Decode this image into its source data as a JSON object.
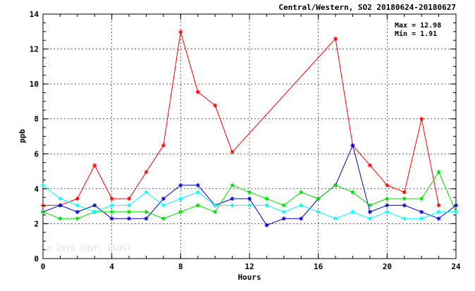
{
  "chart_data": {
    "type": "line",
    "title": "Central/Western, SO2 20180624-20180627",
    "xlabel": "Hours",
    "ylabel": "ppb",
    "xlim": [
      0,
      24
    ],
    "ylim": [
      0,
      14
    ],
    "xticks": [
      0,
      4,
      8,
      12,
      16,
      20,
      24
    ],
    "yticks": [
      0,
      2,
      4,
      6,
      8,
      10,
      12,
      14
    ],
    "grid": "dashed",
    "stats": {
      "max_label": "Max = 12.98",
      "min_label": "Min =  1.91"
    },
    "watermark": "© 2026  ENVF, HKUST",
    "series": [
      {
        "color": "#ff0000",
        "x": [
          0,
          1,
          2,
          3,
          4,
          5,
          6,
          7,
          8,
          9,
          10,
          11,
          17,
          18,
          19,
          20,
          21,
          22,
          23
        ],
        "y": [
          3.05,
          3.05,
          3.43,
          5.34,
          3.43,
          3.43,
          4.96,
          6.48,
          12.98,
          9.54,
          8.77,
          6.1,
          12.59,
          6.48,
          5.34,
          4.2,
          3.8,
          8.0,
          3.05
        ]
      },
      {
        "color": "#0000cc",
        "x": [
          0,
          1,
          2,
          3,
          4,
          5,
          6,
          7,
          8,
          9,
          10,
          11,
          12,
          13,
          14,
          15,
          16,
          17,
          18,
          19,
          20,
          21,
          22,
          23,
          24
        ],
        "y": [
          2.67,
          3.05,
          2.67,
          3.05,
          2.29,
          2.29,
          2.29,
          3.43,
          4.2,
          4.2,
          3.05,
          3.43,
          3.43,
          1.91,
          2.29,
          2.29,
          3.43,
          4.2,
          6.48,
          2.67,
          3.05,
          3.05,
          2.67,
          2.29,
          3.05
        ]
      },
      {
        "color": "#00dd00",
        "x": [
          0,
          1,
          2,
          3,
          4,
          5,
          6,
          7,
          8,
          9,
          10,
          11,
          12,
          13,
          14,
          15,
          16,
          17,
          18,
          19,
          20,
          21,
          22,
          23,
          24
        ],
        "y": [
          2.67,
          2.29,
          2.29,
          2.67,
          2.67,
          2.67,
          2.67,
          2.29,
          2.67,
          3.05,
          2.67,
          4.2,
          3.8,
          3.43,
          3.05,
          3.8,
          3.43,
          4.2,
          3.8,
          3.05,
          3.43,
          3.43,
          3.43,
          4.96,
          2.67
        ]
      },
      {
        "color": "#00ffff",
        "x": [
          0,
          1,
          2,
          3,
          4,
          5,
          6,
          7,
          8,
          9,
          10,
          11,
          12,
          13,
          14,
          15,
          16,
          17,
          18,
          19,
          20,
          21,
          22,
          23,
          24
        ],
        "y": [
          4.2,
          3.43,
          3.05,
          2.67,
          3.05,
          3.05,
          3.8,
          3.05,
          3.43,
          3.8,
          3.05,
          3.05,
          3.05,
          3.05,
          2.67,
          3.05,
          2.67,
          2.29,
          2.67,
          2.29,
          2.67,
          2.29,
          2.29,
          2.67,
          2.67
        ]
      }
    ]
  }
}
